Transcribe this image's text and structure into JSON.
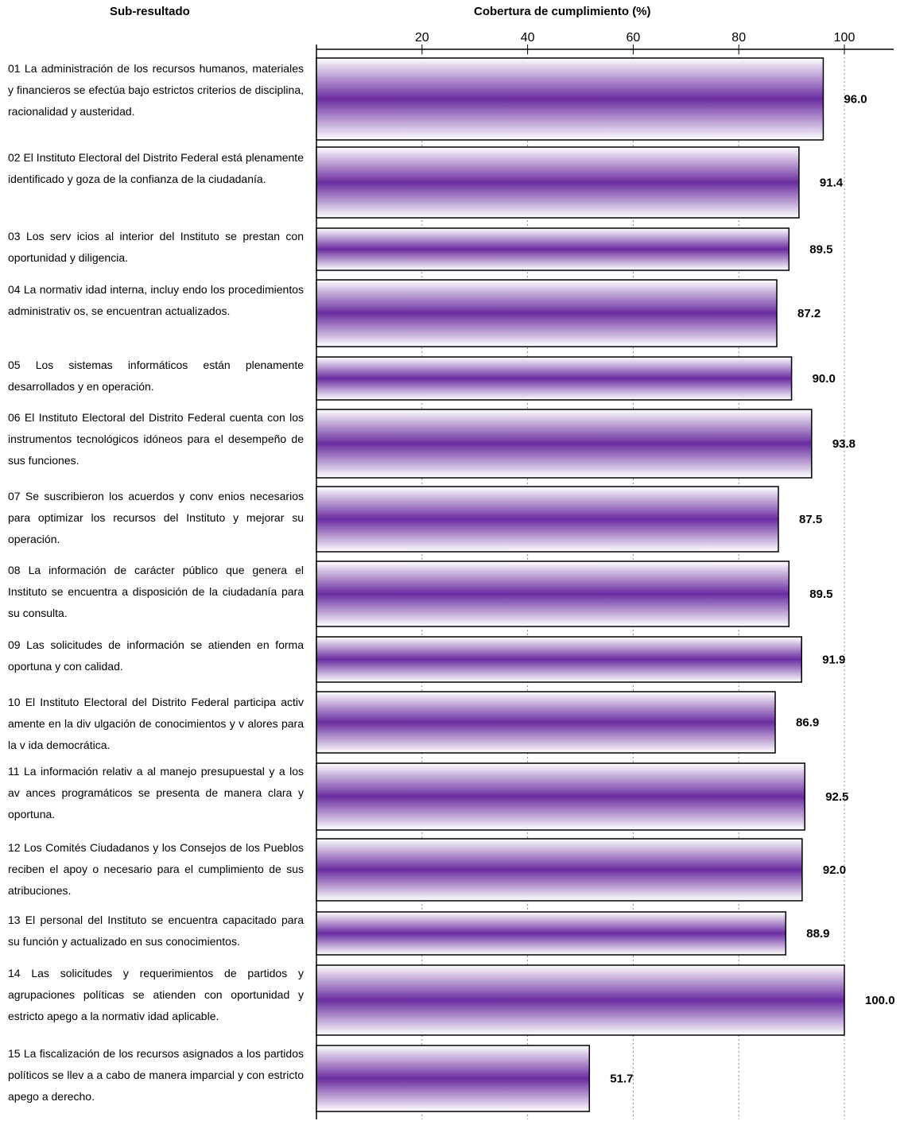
{
  "header": {
    "left_title": "Sub-resultado",
    "chart_title": "Cobertura de cumplimiento (%)"
  },
  "colors": {
    "bar_dark": "#6a2ca0",
    "bar_light": "#ffffff",
    "bar_border": "#000000",
    "gridline": "#888888"
  },
  "chart_data": {
    "type": "bar",
    "orientation": "horizontal",
    "title": "Cobertura de cumplimiento (%)",
    "xlim": [
      0,
      110
    ],
    "x_ticks": [
      20,
      40,
      60,
      80,
      100
    ],
    "x_axis_position": "top",
    "grid": true,
    "categories": [
      "01 La administración de los recursos humanos, materiales y financieros se efectúa bajo estrictos criterios de disciplina, racionalidad y austeridad.",
      "02 El Instituto Electoral del Distrito Federal está plenamente identificado y goza de la confianza de la ciudadanía.",
      "03 Los serv icios al interior del Instituto se prestan con oportunidad y diligencia.",
      "04 La normativ idad interna, incluy endo los procedimientos administrativ os, se encuentran actualizados.",
      "05 Los sistemas informáticos están plenamente desarrollados y en operación.",
      "06 El Instituto Electoral del Distrito Federal cuenta con los instrumentos tecnológicos idóneos para el desempeño de sus funciones.",
      "07 Se suscribieron los acuerdos y conv enios necesarios para optimizar los recursos del Instituto y mejorar su operación.",
      "08 La información de carácter público que genera el Instituto se encuentra a disposición de la ciudadanía para su consulta.",
      "09 Las solicitudes de información se atienden en forma oportuna y con calidad.",
      "10 El Instituto Electoral del Distrito Federal participa activ amente en la div ulgación de conocimientos y v alores para la v ida democrática.",
      "11 La información relativ a al manejo presupuestal y a los av ances programáticos se presenta de manera clara y oportuna.",
      "12 Los Comités Ciudadanos y los Consejos de los Pueblos reciben el apoy o necesario para el cumplimiento de sus atribuciones.",
      "13 El personal del Instituto se encuentra capacitado para su función y actualizado en sus conocimientos.",
      "14 Las solicitudes y requerimientos de partidos y agrupaciones políticas se atienden con oportunidad y estricto apego a la normativ idad aplicable.",
      "15 La fiscalización de los recursos asignados a los partidos políticos se llev a a cabo de manera imparcial y con estricto apego a derecho."
    ],
    "values": [
      96.0,
      91.4,
      89.5,
      87.2,
      90.0,
      93.8,
      87.5,
      89.5,
      91.9,
      86.9,
      92.5,
      92.0,
      88.9,
      100.0,
      51.7
    ],
    "value_labels": [
      "96.0",
      "91.4",
      "89.5",
      "87.2",
      "90.0",
      "93.8",
      "87.5",
      "89.5",
      "91.9",
      "86.9",
      "92.5",
      "92.0",
      "88.9",
      "100.0",
      "51.7"
    ]
  }
}
